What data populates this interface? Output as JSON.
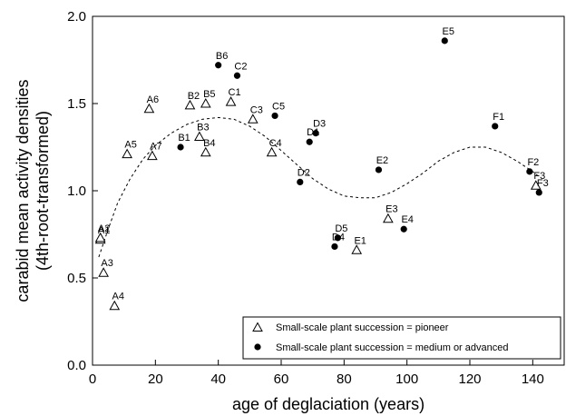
{
  "chart_data": {
    "type": "scatter",
    "xlabel": "age of deglaciation (years)",
    "ylabel": "carabid mean activity densities",
    "ylabel_sub": "(4th-root-transformed)",
    "xlim": [
      0,
      150
    ],
    "ylim": [
      0.0,
      2.0
    ],
    "x_ticks": [
      0,
      20,
      40,
      60,
      80,
      100,
      120,
      140
    ],
    "x_tick_labels": [
      "0",
      "20",
      "40",
      "60",
      "80",
      "100",
      "120",
      "140"
    ],
    "y_ticks": [
      0.0,
      0.5,
      1.0,
      1.5,
      2.0
    ],
    "y_tick_labels": [
      "0.0",
      "0.5",
      "1.0",
      "1.5",
      "2.0"
    ],
    "grid": false,
    "legend_position": "bottom-right",
    "series": [
      {
        "name": "Small-scale plant succession = pioneer",
        "marker": "open-triangle",
        "points": [
          {
            "label": "A1",
            "x": 2.5,
            "y": 0.72
          },
          {
            "label": "A2",
            "x": 2.5,
            "y": 0.73
          },
          {
            "label": "A3",
            "x": 3.5,
            "y": 0.53
          },
          {
            "label": "A4",
            "x": 7,
            "y": 0.34
          },
          {
            "label": "A5",
            "x": 11,
            "y": 1.21
          },
          {
            "label": "A6",
            "x": 18,
            "y": 1.47
          },
          {
            "label": "A7",
            "x": 19,
            "y": 1.2
          },
          {
            "label": "B2",
            "x": 31,
            "y": 1.49
          },
          {
            "label": "B3",
            "x": 34,
            "y": 1.31
          },
          {
            "label": "B4",
            "x": 36,
            "y": 1.22
          },
          {
            "label": "B5",
            "x": 36,
            "y": 1.5
          },
          {
            "label": "C1",
            "x": 44,
            "y": 1.51
          },
          {
            "label": "C3",
            "x": 51,
            "y": 1.41
          },
          {
            "label": "C4",
            "x": 57,
            "y": 1.22
          },
          {
            "label": "E1",
            "x": 84,
            "y": 0.66
          },
          {
            "label": "E3",
            "x": 94,
            "y": 0.84
          },
          {
            "label": "F3",
            "x": 141,
            "y": 1.03
          }
        ]
      },
      {
        "name": "Small-scale plant succession = medium or advanced",
        "marker": "filled-circle",
        "points": [
          {
            "label": "B1",
            "x": 28,
            "y": 1.25
          },
          {
            "label": "B6",
            "x": 40,
            "y": 1.72
          },
          {
            "label": "C2",
            "x": 46,
            "y": 1.66
          },
          {
            "label": "C5",
            "x": 58,
            "y": 1.43
          },
          {
            "label": "D1",
            "x": 69,
            "y": 1.28
          },
          {
            "label": "D2",
            "x": 66,
            "y": 1.05
          },
          {
            "label": "D3",
            "x": 71,
            "y": 1.33
          },
          {
            "label": "D4",
            "x": 77,
            "y": 0.68
          },
          {
            "label": "D5",
            "x": 78,
            "y": 0.73
          },
          {
            "label": "E2",
            "x": 91,
            "y": 1.12
          },
          {
            "label": "E4",
            "x": 99,
            "y": 0.78
          },
          {
            "label": "E5",
            "x": 112,
            "y": 1.86
          },
          {
            "label": "F1",
            "x": 128,
            "y": 1.37
          },
          {
            "label": "F2",
            "x": 139,
            "y": 1.11
          },
          {
            "label": "F3",
            "x": 142,
            "y": 0.99
          }
        ]
      }
    ],
    "fit_curve": {
      "style": "dashed",
      "points": [
        [
          2,
          0.62
        ],
        [
          5,
          0.78
        ],
        [
          8,
          0.93
        ],
        [
          12,
          1.07
        ],
        [
          16,
          1.18
        ],
        [
          20,
          1.26
        ],
        [
          25,
          1.33
        ],
        [
          30,
          1.38
        ],
        [
          35,
          1.41
        ],
        [
          40,
          1.42
        ],
        [
          45,
          1.41
        ],
        [
          50,
          1.37
        ],
        [
          55,
          1.31
        ],
        [
          60,
          1.23
        ],
        [
          65,
          1.15
        ],
        [
          70,
          1.07
        ],
        [
          75,
          1.01
        ],
        [
          80,
          0.97
        ],
        [
          85,
          0.96
        ],
        [
          90,
          0.96
        ],
        [
          95,
          0.99
        ],
        [
          100,
          1.04
        ],
        [
          105,
          1.1
        ],
        [
          110,
          1.17
        ],
        [
          115,
          1.22
        ],
        [
          120,
          1.25
        ],
        [
          125,
          1.25
        ],
        [
          130,
          1.22
        ],
        [
          135,
          1.17
        ],
        [
          140,
          1.11
        ],
        [
          142,
          1.08
        ]
      ]
    }
  }
}
